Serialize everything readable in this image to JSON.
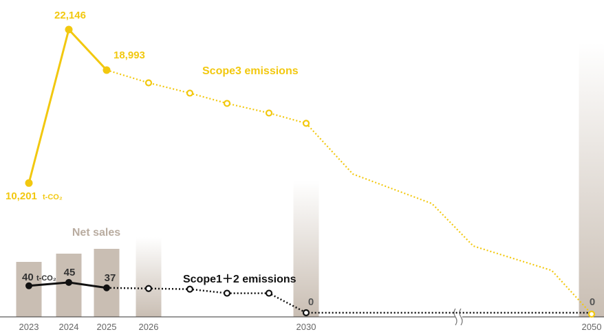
{
  "chart_data": {
    "type": "line",
    "colors": {
      "scope3": "#F2C80F",
      "scope12": "#111111",
      "sales": "#C9BEB3",
      "axis": "#333333"
    },
    "x_labels": [
      "2023",
      "2024",
      "2025",
      "2026",
      "2030",
      "2050"
    ],
    "net_sales": {
      "name": "Net sales",
      "bars": [
        {
          "year": "2023",
          "level": 0.79,
          "style": "solid"
        },
        {
          "year": "2024",
          "level": 0.87,
          "style": "solid"
        },
        {
          "year": "2025",
          "level": 0.94,
          "style": "solid"
        },
        {
          "year": "2026",
          "level": 1.0,
          "style": "gradient"
        },
        {
          "year": "2030",
          "level": 1.0,
          "style": "gradient"
        },
        {
          "year": "2050",
          "level": 1.0,
          "style": "gradient"
        }
      ]
    },
    "scope3": {
      "name": "Scope3 emissions",
      "unit": "t-CO₂",
      "actual": [
        {
          "x": 2023,
          "y": 10201,
          "label": "10,201"
        },
        {
          "x": 2024,
          "y": 22146,
          "label": "22,146"
        },
        {
          "x": 2025,
          "y": 18993,
          "label": "18,993"
        }
      ],
      "target": [
        {
          "x": 2025,
          "y": 18993
        },
        {
          "x": 2026,
          "y": 18000,
          "marker": true
        },
        {
          "x": 2027,
          "y": 17200,
          "marker": true
        },
        {
          "x": 2028,
          "y": 16400,
          "marker": true
        },
        {
          "x": 2029,
          "y": 15650,
          "marker": true
        },
        {
          "x": 2030,
          "y": 14850,
          "marker": true
        },
        {
          "x": 2035,
          "y": 10900
        },
        {
          "x": 2040,
          "y": 8600
        },
        {
          "x": 2044,
          "y": 5300
        },
        {
          "x": 2048,
          "y": 3400
        },
        {
          "x": 2050,
          "y": 0,
          "marker": true,
          "label": "0"
        }
      ]
    },
    "scope12": {
      "name": "Scope1＋2 emissions",
      "unit": "t-CO₂",
      "actual": [
        {
          "x": 2023,
          "y": 40,
          "label": "40"
        },
        {
          "x": 2024,
          "y": 45,
          "label": "45"
        },
        {
          "x": 2025,
          "y": 37,
          "label": "37"
        }
      ],
      "target": [
        {
          "x": 2025,
          "y": 37
        },
        {
          "x": 2026,
          "y": 36,
          "marker": true
        },
        {
          "x": 2027,
          "y": 35,
          "marker": true
        },
        {
          "x": 2028,
          "y": 29,
          "marker": true
        },
        {
          "x": 2029,
          "y": 29,
          "marker": true
        },
        {
          "x": 2030,
          "y": 0,
          "marker": true,
          "label": "0"
        },
        {
          "x": 2050,
          "y": 0
        }
      ]
    },
    "axis_break": "≈"
  }
}
